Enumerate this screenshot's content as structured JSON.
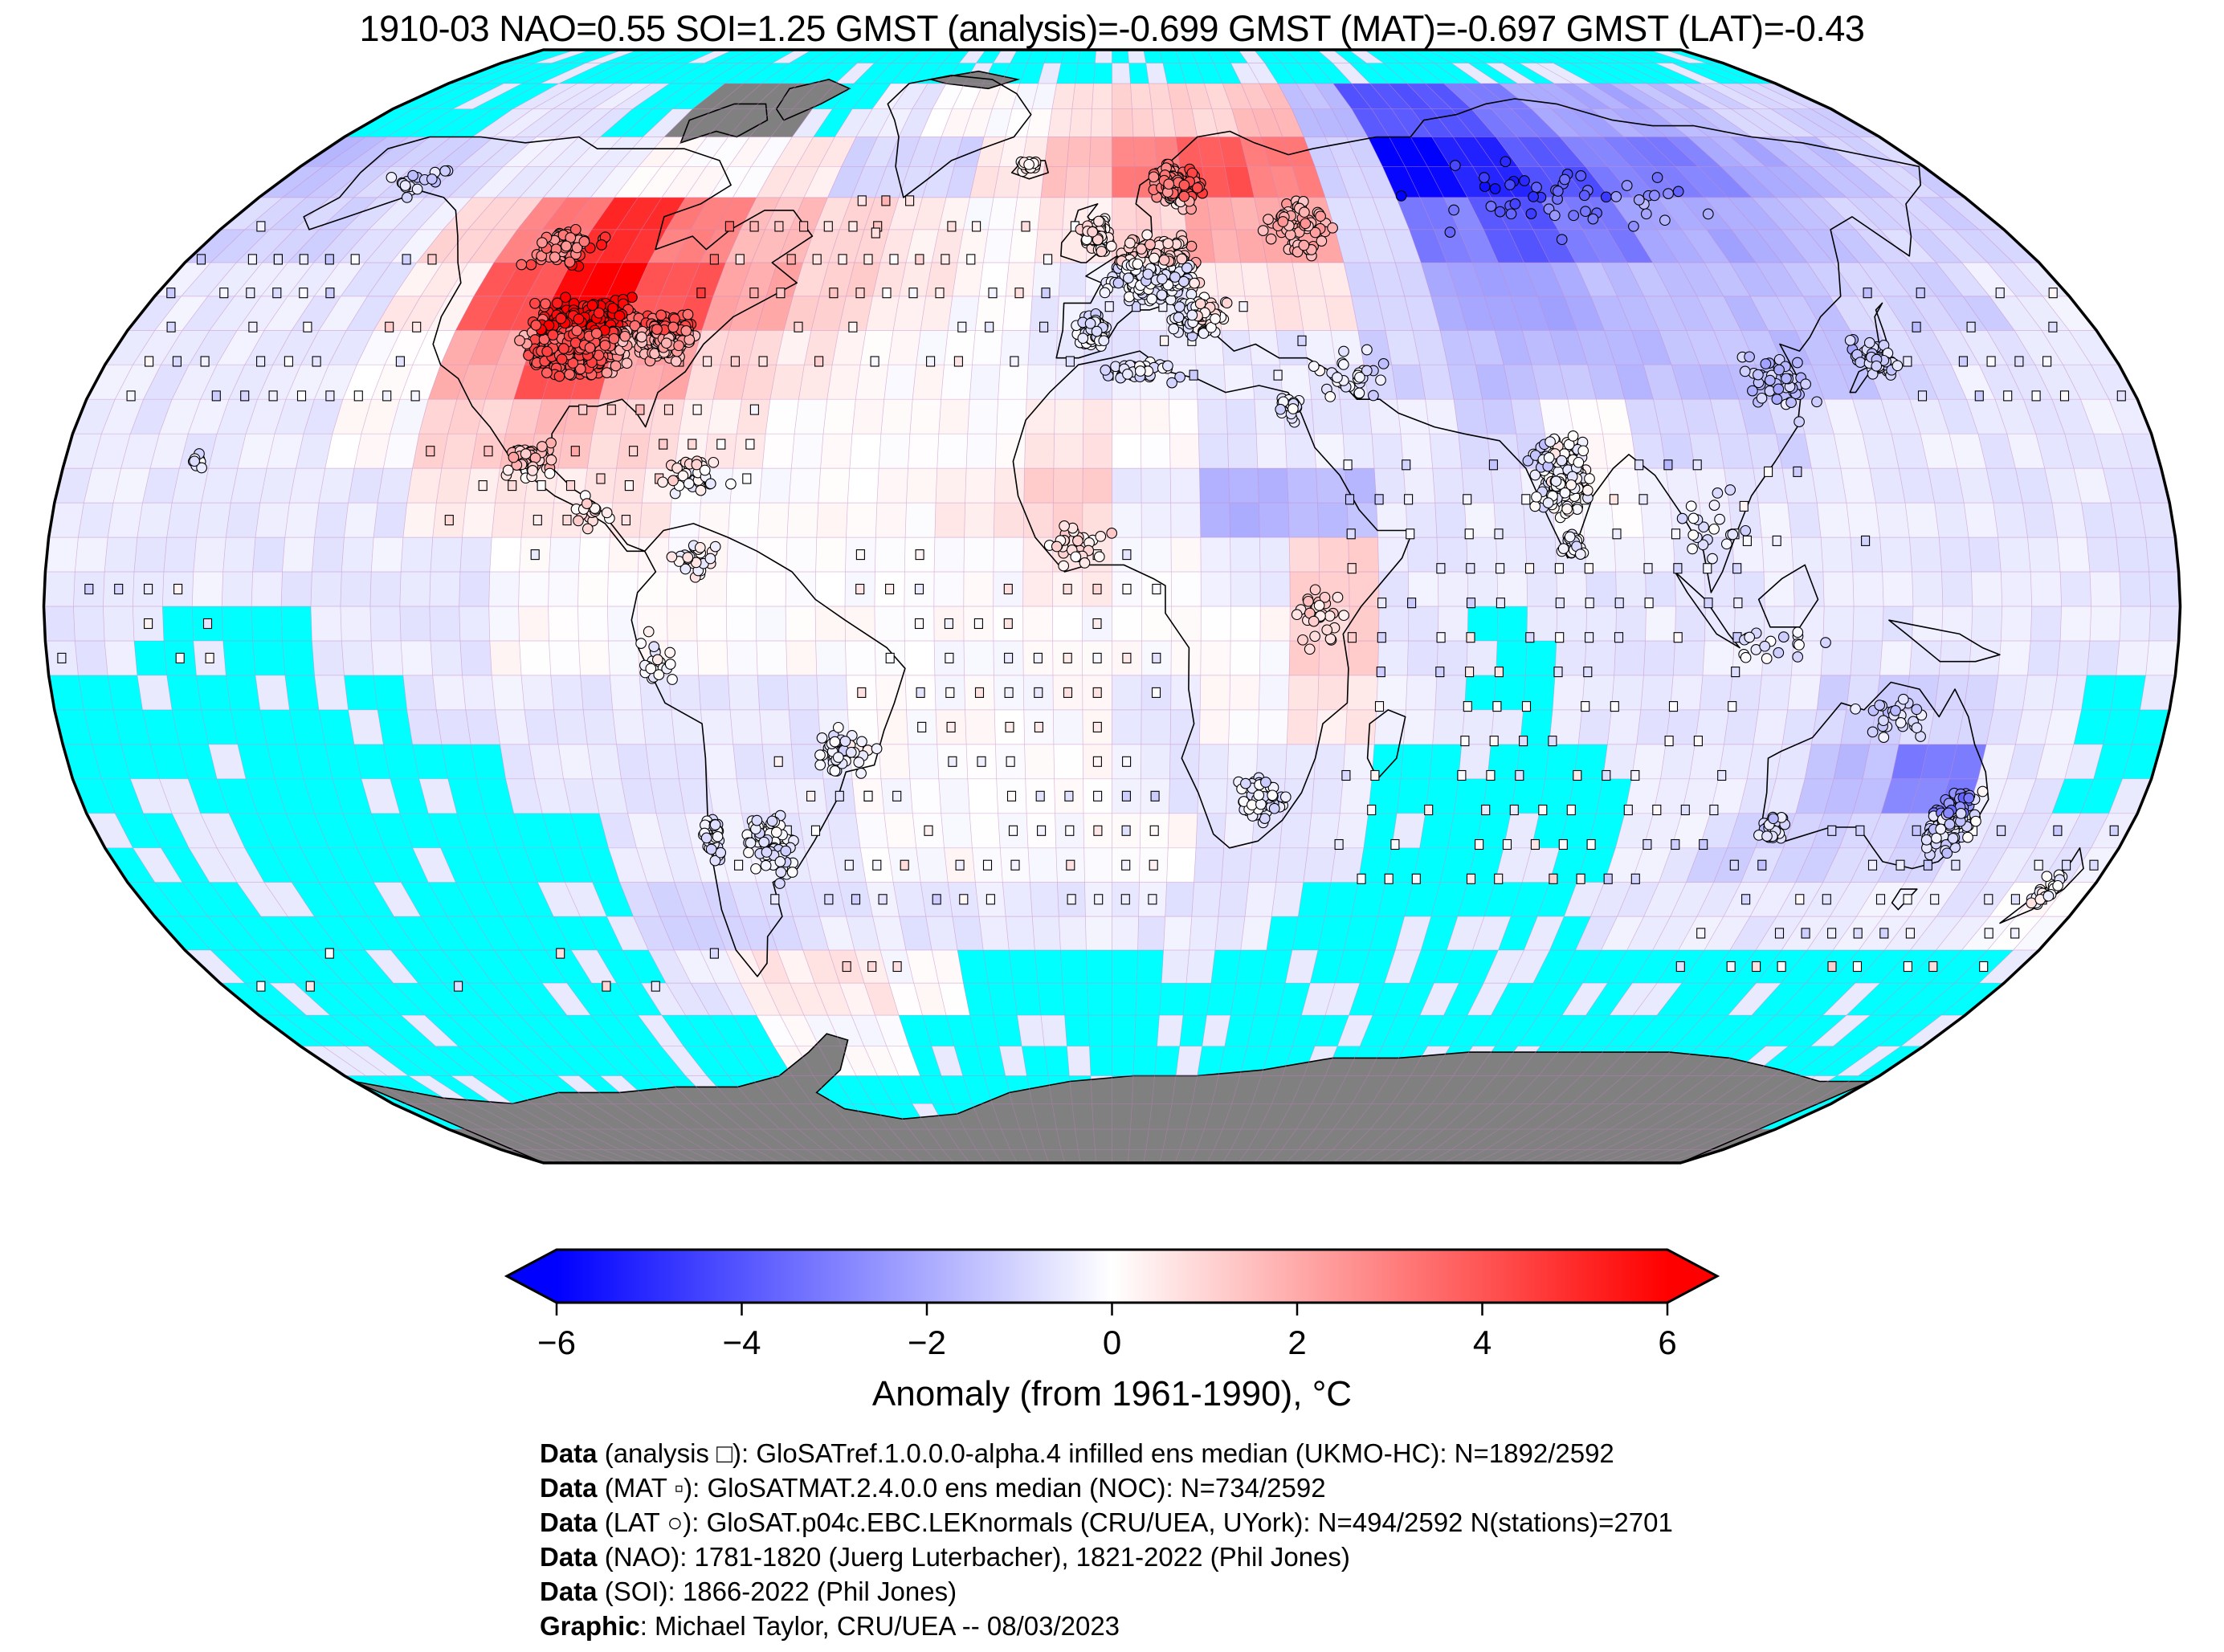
{
  "header": {
    "title": "1910-03 NAO=0.55 SOI=1.25 GMST (analysis)=-0.699 GMST (MAT)=-0.697 GMST (LAT)=-0.43"
  },
  "chart_data": {
    "type": "heatmap",
    "projection": "robinson",
    "title": "1910-03 NAO=0.55 SOI=1.25 GMST (analysis)=-0.699 GMST (MAT)=-0.697 GMST (LAT)=-0.43",
    "date": "1910-03",
    "indices": {
      "nao": 0.55,
      "soi": 1.25,
      "gmst_analysis": -0.699,
      "gmst_mat": -0.697,
      "gmst_lat": -0.43
    },
    "counts": {
      "analysis_cells": "1892/2592",
      "mat_cells": "734/2592",
      "lat_cells": "494/2592",
      "stations": 2701
    },
    "colorbar": {
      "label": "Anomaly (from 1961-1990), °C",
      "range": [
        -6,
        6
      ],
      "ticks": [
        -6,
        -4,
        -2,
        0,
        2,
        4,
        6
      ],
      "tick_labels": [
        "−6",
        "−4",
        "−2",
        "0",
        "2",
        "4",
        "6"
      ],
      "extend": "both",
      "colors": {
        "neg": "#0000ff",
        "mid": "#ffffff",
        "pos": "#ff0000"
      }
    },
    "missing_color": "#00ffff",
    "nodata_land_color": "#808080",
    "graticule_deg": 5,
    "features_summary": {
      "warm_anomalies": [
        "central North America +4 to +6",
        "Scandinavia / NW Russia +3 to +4",
        "Labrador Sea and N Atlantic +0.5 to +1.5"
      ],
      "cold_anomalies": [
        "western Siberia -5 to -6",
        "central Australia -2 to -3",
        "Sudan/Chad -2"
      ],
      "missing_data": [
        "Arctic cap",
        "SE Pacific",
        "Southern Ocean",
        "S Indian Ocean patches"
      ],
      "no_data_land": [
        "Antarctica",
        "Canadian Arctic Archipelago",
        "N Greenland"
      ]
    },
    "grid": {
      "lon_min": -180,
      "lat_max": 90,
      "lon_step": 15,
      "lat_step": 10,
      "value_map": {
        "X": "missing",
        "G": "no-data-land",
        "0": 0,
        "1": -0.5,
        "2": -1,
        "3": -1.5,
        "4": -2,
        "5": -3,
        "6": -4,
        "7": -5,
        "8": -6,
        "a": 0.5,
        "b": 1,
        "c": 1.5,
        "d": 2,
        "e": 3,
        "f": 4,
        "g": 5,
        "h": 6
      },
      "rows": [
        "XXXXXXXXXXXXXXXXXXXXXXXX",
        "XX11XGGX100abbc366544322",
        "3221100a22acefe287655432",
        "221begecba0abdd256544322",
        "111afhfdba011aa244333221",
        "1110dfdba001111233333211",
        "1110bcba000a011120221111",
        "1111aaa000ab143110111111",
        "11111000000a01b111111111",
        "1XX11000000000b1X1111111",
        "XXXX1111100010a1X111221X",
        "XXXXX1111000111XXX11351X",
        "XXXXXX111000011XXX122211",
        "XXXXXX22111111XXXX111110",
        "XXXXXX1aa0XXXXXXXXXXXXXX",
        "XXXXXXX00XXXXXXXXXXXXXXX",
        "XXXXXXXXXXXXXXXXXXXXXXXX",
        "GGGGGGGGGGGGGGGGGGGGGGGG"
      ]
    },
    "stations": [
      [
        "usa",
        -96,
        39,
        13,
        6.5,
        950
      ],
      [
        "usa-east",
        -81,
        39,
        6,
        4,
        280
      ],
      [
        "canada-south",
        -108,
        52,
        9,
        3.5,
        70
      ],
      [
        "mexico",
        -100,
        21,
        5,
        3.5,
        60
      ],
      [
        "caribbean",
        -72,
        19,
        8,
        3.5,
        35
      ],
      [
        "central-america",
        -88,
        14,
        5,
        3,
        20
      ],
      [
        "europe",
        8,
        49,
        10,
        5.5,
        600
      ],
      [
        "uk-ireland",
        -3,
        54,
        3.5,
        3,
        130
      ],
      [
        "scandinavia",
        14,
        62,
        7,
        4.5,
        160
      ],
      [
        "iberia",
        -4,
        40,
        4,
        3,
        80
      ],
      [
        "italy-balkans",
        16,
        42,
        6,
        4,
        120
      ],
      [
        "iceland",
        -19,
        65,
        3,
        1.5,
        18
      ],
      [
        "russia-west",
        38,
        55,
        9,
        6,
        70
      ],
      [
        "siberia",
        95,
        60,
        38,
        8,
        50
      ],
      [
        "middle-east",
        42,
        33,
        8,
        5,
        30
      ],
      [
        "india",
        77,
        19,
        7,
        7.5,
        170
      ],
      [
        "sri-lanka",
        78,
        9,
        3,
        3,
        25
      ],
      [
        "japan",
        137,
        36,
        5,
        3.5,
        60
      ],
      [
        "china-east",
        118,
        32,
        8,
        6,
        45
      ],
      [
        "se-asia",
        102,
        12,
        8,
        6,
        20
      ],
      [
        "indonesia",
        112,
        -6,
        12,
        3,
        18
      ],
      [
        "australia-east",
        148,
        -31,
        5.5,
        6,
        150
      ],
      [
        "australia-sw",
        117,
        -32,
        3,
        2.5,
        40
      ],
      [
        "australia-north",
        133,
        -16,
        9,
        4,
        25
      ],
      [
        "new-zealand",
        172,
        -41,
        3,
        3.5,
        28
      ],
      [
        "south-africa",
        26,
        -28,
        5,
        4.5,
        70
      ],
      [
        "africa-east",
        35,
        -2,
        5,
        6,
        30
      ],
      [
        "africa-west",
        -6,
        9,
        8,
        4,
        30
      ],
      [
        "north-africa",
        4,
        34,
        9,
        2.5,
        40
      ],
      [
        "egypt-levant",
        31,
        29,
        4,
        3,
        20
      ],
      [
        "argentina",
        -61,
        -35,
        6,
        6,
        80
      ],
      [
        "brazil",
        -46,
        -21,
        6,
        4.5,
        45
      ],
      [
        "chile",
        -71,
        -33,
        2.5,
        6,
        35
      ],
      [
        "peru",
        -77,
        -8,
        4,
        5,
        20
      ],
      [
        "colombia",
        -70,
        7,
        6,
        4,
        25
      ],
      [
        "hawaii",
        -157,
        21,
        2,
        1.5,
        8
      ],
      [
        "alaska",
        -150,
        62,
        8,
        4,
        18
      ]
    ],
    "mat_regions": [
      [
        -80,
        -5,
        33,
        57,
        0.75
      ],
      [
        -8,
        36,
        31,
        44,
        0.6
      ],
      [
        140,
        180,
        28,
        46,
        0.6
      ],
      [
        -180,
        -118,
        28,
        52,
        0.6
      ],
      [
        -120,
        -80,
        5,
        25,
        0.5
      ],
      [
        -95,
        -60,
        16,
        30,
        0.5
      ],
      [
        -45,
        12,
        -45,
        8,
        0.6
      ],
      [
        38,
        110,
        -42,
        22,
        0.6
      ],
      [
        105,
        128,
        2,
        24,
        0.5
      ],
      [
        110,
        178,
        -55,
        -28,
        0.6
      ],
      [
        -70,
        -40,
        -55,
        -20,
        0.45
      ],
      [
        -180,
        -75,
        -58,
        -48,
        0.4
      ],
      [
        -60,
        -40,
        52,
        62,
        0.4
      ],
      [
        -180,
        -150,
        -10,
        3,
        0.5
      ],
      [
        -175,
        -155,
        48,
        60,
        0.4
      ]
    ]
  },
  "footer": {
    "lines": [
      {
        "label": "Data",
        "text": " (analysis □): GloSATref.1.0.0.0-alpha.4 infilled ens median (UKMO-HC): N=1892/2592"
      },
      {
        "label": "Data",
        "text": " (MAT ▫): GloSATMAT.2.4.0.0 ens median (NOC): N=734/2592"
      },
      {
        "label": "Data",
        "text": " (LAT ○): GloSAT.p04c.EBC.LEKnormals (CRU/UEA, UYork): N=494/2592 N(stations)=2701"
      },
      {
        "label": "Data",
        "text": " (NAO): 1781-1820 (Juerg Luterbacher), 1821-2022 (Phil Jones)"
      },
      {
        "label": "Data",
        "text": " (SOI): 1866-2022 (Phil Jones)"
      },
      {
        "label": "Graphic",
        "text": ": Michael Taylor, CRU/UEA -- 08/03/2023"
      }
    ]
  }
}
